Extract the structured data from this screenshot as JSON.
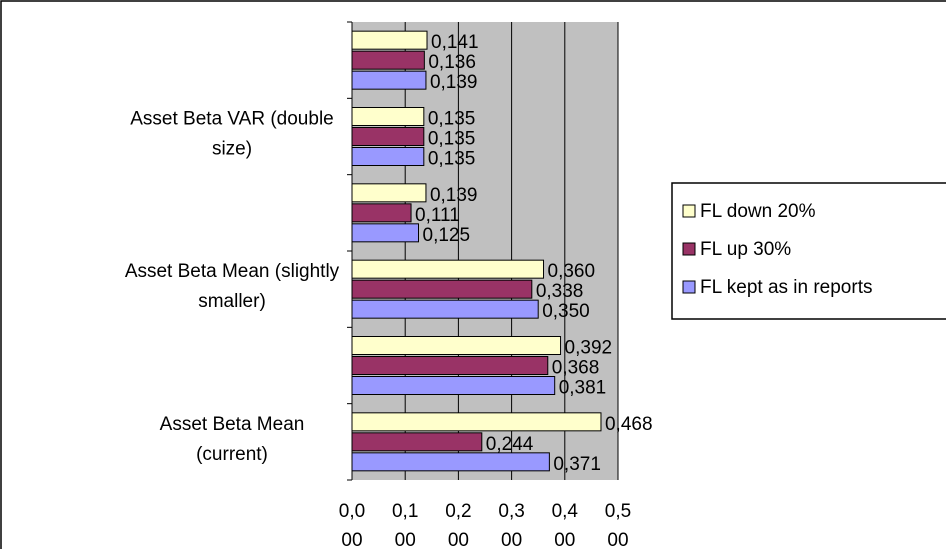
{
  "chart_data": {
    "type": "bar",
    "orientation": "horizontal",
    "categories": [
      "Asset Beta Mean (current)",
      "",
      "Asset Beta Mean (slightly smaller)",
      "",
      "Asset Beta VAR (double size)",
      ""
    ],
    "category_label_lines": [
      [
        "Asset Beta Mean",
        "(current)"
      ],
      [],
      [
        "Asset Beta Mean (slightly",
        "smaller)"
      ],
      [],
      [
        "Asset Beta VAR (double",
        "size)"
      ],
      []
    ],
    "series": [
      {
        "name": "FL down 20%",
        "color": "#ffffcc",
        "values": [
          0.468,
          0.392,
          0.36,
          0.139,
          0.135,
          0.141
        ],
        "labels": [
          "0,468",
          "0,392",
          "0,360",
          "0,139",
          "0,135",
          "0,141"
        ]
      },
      {
        "name": "FL up 30%",
        "color": "#993366",
        "values": [
          0.244,
          0.368,
          0.338,
          0.111,
          0.135,
          0.136
        ],
        "labels": [
          "0,244",
          "0,368",
          "0,338",
          "0,111",
          "0,135",
          "0,136"
        ]
      },
      {
        "name": "FL kept as in reports",
        "color": "#9999ff",
        "values": [
          0.371,
          0.381,
          0.35,
          0.125,
          0.135,
          0.139
        ],
        "labels": [
          "0,371",
          "0,381",
          "0,350",
          "0,125",
          "0,135",
          "0,139"
        ]
      }
    ],
    "xlim": [
      0,
      0.5
    ],
    "x_ticks": [
      0,
      0.1,
      0.2,
      0.3,
      0.4,
      0.5
    ],
    "x_tick_labels": [
      [
        "0,0",
        "00"
      ],
      [
        "0,1",
        "00"
      ],
      [
        "0,2",
        "00"
      ],
      [
        "0,3",
        "00"
      ],
      [
        "0,4",
        "00"
      ],
      [
        "0,5",
        "00"
      ]
    ],
    "plot_background": "#c0c0c0",
    "grid": "vertical",
    "legend_position": "right",
    "title": "",
    "xlabel": "",
    "ylabel": ""
  }
}
